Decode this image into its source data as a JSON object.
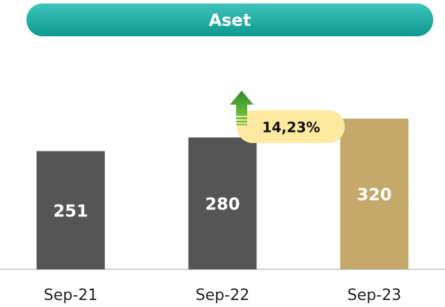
{
  "chart_data": {
    "type": "bar",
    "title": "Aset",
    "categories": [
      "Sep-21",
      "Sep-22",
      "Sep-23"
    ],
    "values": [
      251,
      280,
      320
    ],
    "colors": [
      "#555555",
      "#555555",
      "#c4a96b"
    ],
    "ylim": [
      0,
      400
    ],
    "annotation": "14,23%"
  }
}
